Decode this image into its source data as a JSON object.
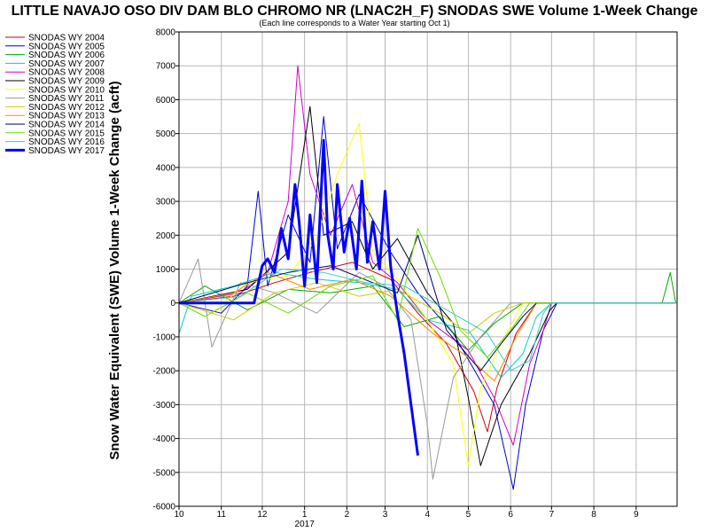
{
  "chart_data": {
    "type": "line",
    "title": "LITTLE NAVAJO OSO DIV DAM BLO CHROMO NR (LNAC2H_F) SNODAS SWE Volume 1-Week Change",
    "subtitle": "(Each line corresponds to a Water Year starting Oct 1)",
    "ylabel": "Snow Water Equivalent (SWE) Volume 1-Week Change (acft)",
    "xlabel": "",
    "x_start": "2016-10-01",
    "x_end": "2017-10-01",
    "x_ticks": [
      {
        "label": "10",
        "date": "2016-10-01"
      },
      {
        "label": "11",
        "date": "2016-11-01"
      },
      {
        "label": "12",
        "date": "2016-12-01"
      },
      {
        "label": "1",
        "date": "2017-01-01"
      },
      {
        "label": "2",
        "date": "2017-02-01"
      },
      {
        "label": "3",
        "date": "2017-03-01"
      },
      {
        "label": "4",
        "date": "2017-04-01"
      },
      {
        "label": "5",
        "date": "2017-05-01"
      },
      {
        "label": "6",
        "date": "2017-06-01"
      },
      {
        "label": "7",
        "date": "2017-07-01"
      },
      {
        "label": "8",
        "date": "2017-08-01"
      },
      {
        "label": "9",
        "date": "2017-09-01"
      }
    ],
    "year_label": {
      "text": "2017",
      "date": "2017-01-01"
    },
    "ylim": [
      -6000,
      8000
    ],
    "y_ticks": [
      -6000,
      -5000,
      -4000,
      -3000,
      -2000,
      -1000,
      0,
      1000,
      2000,
      3000,
      4000,
      5000,
      6000,
      7000,
      8000
    ],
    "grid": true,
    "legend_position": "left",
    "series": [
      {
        "name": "SNODAS WY 2004",
        "color": "#cc0000",
        "width": 1,
        "points": [
          [
            "2016-10-01",
            0
          ],
          [
            "2016-11-10",
            200
          ],
          [
            "2016-12-10",
            600
          ],
          [
            "2017-01-05",
            900
          ],
          [
            "2017-02-05",
            1200
          ],
          [
            "2017-03-05",
            700
          ],
          [
            "2017-03-25",
            -300
          ],
          [
            "2017-04-15",
            -1200
          ],
          [
            "2017-05-05",
            -2600
          ],
          [
            "2017-05-15",
            -3800
          ],
          [
            "2017-05-22",
            -2500
          ],
          [
            "2017-06-05",
            -900
          ],
          [
            "2017-06-20",
            0
          ],
          [
            "2017-09-30",
            0
          ]
        ]
      },
      {
        "name": "SNODAS WY 2005",
        "color": "#0000cc",
        "width": 1,
        "points": [
          [
            "2016-10-01",
            0
          ],
          [
            "2016-11-01",
            -300
          ],
          [
            "2016-11-20",
            500
          ],
          [
            "2016-11-28",
            3300
          ],
          [
            "2016-12-05",
            500
          ],
          [
            "2016-12-20",
            2600
          ],
          [
            "2017-01-05",
            1200
          ],
          [
            "2017-01-15",
            5500
          ],
          [
            "2017-01-25",
            1600
          ],
          [
            "2017-02-10",
            3200
          ],
          [
            "2017-03-05",
            1500
          ],
          [
            "2017-03-25",
            300
          ],
          [
            "2017-04-20",
            -900
          ],
          [
            "2017-05-20",
            -3000
          ],
          [
            "2017-06-03",
            -5500
          ],
          [
            "2017-06-12",
            -3000
          ],
          [
            "2017-06-25",
            -800
          ],
          [
            "2017-07-05",
            0
          ],
          [
            "2017-09-30",
            0
          ]
        ]
      },
      {
        "name": "SNODAS WY 2006",
        "color": "#00aa00",
        "width": 1,
        "points": [
          [
            "2016-10-01",
            0
          ],
          [
            "2016-10-20",
            500
          ],
          [
            "2016-11-20",
            -200
          ],
          [
            "2016-12-20",
            400
          ],
          [
            "2017-01-20",
            300
          ],
          [
            "2017-02-20",
            500
          ],
          [
            "2017-03-15",
            -700
          ],
          [
            "2017-04-10",
            -400
          ],
          [
            "2017-05-01",
            -1400
          ],
          [
            "2017-05-20",
            -600
          ],
          [
            "2017-06-10",
            0
          ],
          [
            "2017-09-20",
            0
          ],
          [
            "2017-09-26",
            900
          ],
          [
            "2017-09-30",
            0
          ]
        ]
      },
      {
        "name": "SNODAS WY 2007",
        "color": "#00cccc",
        "width": 1,
        "points": [
          [
            "2016-10-01",
            -900
          ],
          [
            "2016-10-10",
            200
          ],
          [
            "2016-11-10",
            500
          ],
          [
            "2016-12-10",
            900
          ],
          [
            "2017-01-10",
            700
          ],
          [
            "2017-02-10",
            600
          ],
          [
            "2017-03-10",
            400
          ],
          [
            "2017-04-01",
            -500
          ],
          [
            "2017-05-01",
            -800
          ],
          [
            "2017-05-25",
            -2200
          ],
          [
            "2017-06-10",
            -1500
          ],
          [
            "2017-06-20",
            -400
          ],
          [
            "2017-07-01",
            0
          ],
          [
            "2017-09-30",
            0
          ]
        ]
      },
      {
        "name": "SNODAS WY 2008",
        "color": "#cc00cc",
        "width": 1,
        "points": [
          [
            "2016-10-01",
            0
          ],
          [
            "2016-11-15",
            300
          ],
          [
            "2016-12-05",
            900
          ],
          [
            "2016-12-20",
            3000
          ],
          [
            "2016-12-27",
            7000
          ],
          [
            "2017-01-05",
            3800
          ],
          [
            "2017-01-20",
            2000
          ],
          [
            "2017-02-05",
            3500
          ],
          [
            "2017-02-20",
            1200
          ],
          [
            "2017-03-10",
            600
          ],
          [
            "2017-04-01",
            -500
          ],
          [
            "2017-05-01",
            -1400
          ],
          [
            "2017-05-20",
            -2800
          ],
          [
            "2017-06-03",
            -4200
          ],
          [
            "2017-06-15",
            -1800
          ],
          [
            "2017-06-25",
            -800
          ],
          [
            "2017-07-01",
            0
          ]
        ]
      },
      {
        "name": "SNODAS WY 2009",
        "color": "#000000",
        "width": 1,
        "points": [
          [
            "2016-10-01",
            0
          ],
          [
            "2016-11-20",
            400
          ],
          [
            "2016-12-20",
            1500
          ],
          [
            "2017-01-05",
            5800
          ],
          [
            "2017-01-15",
            2000
          ],
          [
            "2017-02-05",
            2400
          ],
          [
            "2017-02-20",
            1000
          ],
          [
            "2017-03-10",
            1900
          ],
          [
            "2017-04-01",
            300
          ],
          [
            "2017-04-20",
            -600
          ],
          [
            "2017-05-01",
            -2800
          ],
          [
            "2017-05-10",
            -4800
          ],
          [
            "2017-05-25",
            -3000
          ],
          [
            "2017-06-15",
            -1500
          ],
          [
            "2017-06-30",
            -200
          ],
          [
            "2017-07-05",
            0
          ],
          [
            "2017-09-30",
            0
          ]
        ]
      },
      {
        "name": "SNODAS WY 2010",
        "color": "#ffff00",
        "width": 1,
        "points": [
          [
            "2016-10-01",
            0
          ],
          [
            "2016-10-25",
            -300
          ],
          [
            "2016-11-20",
            600
          ],
          [
            "2016-12-20",
            800
          ],
          [
            "2017-01-10",
            1900
          ],
          [
            "2017-01-25",
            3800
          ],
          [
            "2017-02-10",
            5300
          ],
          [
            "2017-02-20",
            1500
          ],
          [
            "2017-03-10",
            700
          ],
          [
            "2017-04-01",
            -500
          ],
          [
            "2017-04-20",
            -1800
          ],
          [
            "2017-05-01",
            -4800
          ],
          [
            "2017-05-10",
            -2500
          ],
          [
            "2017-05-25",
            -1200
          ],
          [
            "2017-06-10",
            0
          ],
          [
            "2017-09-30",
            0
          ]
        ]
      },
      {
        "name": "SNODAS WY 2011",
        "color": "#999999",
        "width": 1,
        "points": [
          [
            "2016-10-01",
            0
          ],
          [
            "2016-10-15",
            1300
          ],
          [
            "2016-10-25",
            -1300
          ],
          [
            "2016-11-15",
            600
          ],
          [
            "2016-12-10",
            300
          ],
          [
            "2017-01-10",
            -300
          ],
          [
            "2017-02-10",
            900
          ],
          [
            "2017-03-01",
            500
          ],
          [
            "2017-03-20",
            -500
          ],
          [
            "2017-04-01",
            -3600
          ],
          [
            "2017-04-05",
            -5200
          ],
          [
            "2017-04-20",
            -2200
          ],
          [
            "2017-05-10",
            -1000
          ],
          [
            "2017-06-01",
            0
          ],
          [
            "2017-09-30",
            0
          ]
        ]
      },
      {
        "name": "SNODAS WY 2012",
        "color": "#cccc00",
        "width": 1,
        "points": [
          [
            "2016-10-01",
            0
          ],
          [
            "2016-11-10",
            -500
          ],
          [
            "2016-12-10",
            300
          ],
          [
            "2017-01-10",
            600
          ],
          [
            "2017-02-10",
            200
          ],
          [
            "2017-03-10",
            400
          ],
          [
            "2017-04-10",
            -300
          ],
          [
            "2017-05-01",
            -900
          ],
          [
            "2017-05-20",
            -300
          ],
          [
            "2017-06-10",
            0
          ],
          [
            "2017-09-30",
            0
          ]
        ]
      },
      {
        "name": "SNODAS WY 2013",
        "color": "#ff8800",
        "width": 1,
        "points": [
          [
            "2016-10-01",
            0
          ],
          [
            "2016-11-10",
            300
          ],
          [
            "2016-12-05",
            900
          ],
          [
            "2017-01-05",
            400
          ],
          [
            "2017-02-05",
            700
          ],
          [
            "2017-03-05",
            200
          ],
          [
            "2017-04-05",
            -900
          ],
          [
            "2017-05-01",
            -1600
          ],
          [
            "2017-05-20",
            -2300
          ],
          [
            "2017-06-05",
            -1000
          ],
          [
            "2017-06-20",
            0
          ],
          [
            "2017-09-30",
            0
          ]
        ]
      },
      {
        "name": "SNODAS WY 2014",
        "color": "#000066",
        "width": 1,
        "points": [
          [
            "2016-10-01",
            0
          ],
          [
            "2016-11-20",
            600
          ],
          [
            "2016-12-20",
            900
          ],
          [
            "2017-01-20",
            1100
          ],
          [
            "2017-02-20",
            600
          ],
          [
            "2017-03-10",
            300
          ],
          [
            "2017-03-25",
            2000
          ],
          [
            "2017-04-15",
            -800
          ],
          [
            "2017-05-10",
            -2000
          ],
          [
            "2017-05-25",
            -1200
          ],
          [
            "2017-06-10",
            -400
          ],
          [
            "2017-06-20",
            0
          ],
          [
            "2017-09-30",
            0
          ]
        ]
      },
      {
        "name": "SNODAS WY 2015",
        "color": "#66dd00",
        "width": 1,
        "points": [
          [
            "2016-10-01",
            0
          ],
          [
            "2016-10-20",
            -400
          ],
          [
            "2016-11-20",
            300
          ],
          [
            "2016-12-20",
            -300
          ],
          [
            "2017-01-20",
            500
          ],
          [
            "2017-02-20",
            800
          ],
          [
            "2017-03-10",
            -500
          ],
          [
            "2017-03-25",
            2200
          ],
          [
            "2017-04-10",
            800
          ],
          [
            "2017-04-25",
            -800
          ],
          [
            "2017-05-15",
            -1600
          ],
          [
            "2017-06-01",
            -800
          ],
          [
            "2017-06-15",
            0
          ],
          [
            "2017-09-30",
            0
          ]
        ]
      },
      {
        "name": "SNODAS WY 2016",
        "color": "#33cccc",
        "width": 1,
        "points": [
          [
            "2016-10-01",
            0
          ],
          [
            "2016-11-15",
            200
          ],
          [
            "2016-12-15",
            1000
          ],
          [
            "2017-01-15",
            900
          ],
          [
            "2017-02-15",
            600
          ],
          [
            "2017-03-15",
            500
          ],
          [
            "2017-04-15",
            -200
          ],
          [
            "2017-05-15",
            -900
          ],
          [
            "2017-06-01",
            -2000
          ],
          [
            "2017-06-15",
            -1700
          ],
          [
            "2017-06-25",
            -300
          ],
          [
            "2017-07-01",
            0
          ],
          [
            "2017-09-30",
            0
          ]
        ]
      },
      {
        "name": "SNODAS WY 2017",
        "color": "#0000ff",
        "width": 3,
        "points": [
          [
            "2016-10-01",
            0
          ],
          [
            "2016-11-25",
            0
          ],
          [
            "2016-12-01",
            1100
          ],
          [
            "2016-12-05",
            1300
          ],
          [
            "2016-12-10",
            900
          ],
          [
            "2016-12-15",
            2200
          ],
          [
            "2016-12-20",
            1300
          ],
          [
            "2016-12-25",
            3500
          ],
          [
            "2016-12-28",
            2400
          ],
          [
            "2017-01-01",
            500
          ],
          [
            "2017-01-05",
            2600
          ],
          [
            "2017-01-10",
            600
          ],
          [
            "2017-01-15",
            4800
          ],
          [
            "2017-01-18",
            2000
          ],
          [
            "2017-01-22",
            1000
          ],
          [
            "2017-01-25",
            3500
          ],
          [
            "2017-01-30",
            1500
          ],
          [
            "2017-02-03",
            2500
          ],
          [
            "2017-02-08",
            1000
          ],
          [
            "2017-02-12",
            3600
          ],
          [
            "2017-02-16",
            1200
          ],
          [
            "2017-02-20",
            2400
          ],
          [
            "2017-02-25",
            1000
          ],
          [
            "2017-03-01",
            3300
          ],
          [
            "2017-03-05",
            1100
          ],
          [
            "2017-03-10",
            -300
          ],
          [
            "2017-03-15",
            -1500
          ],
          [
            "2017-03-20",
            -3000
          ],
          [
            "2017-03-25",
            -4500
          ]
        ]
      }
    ]
  }
}
